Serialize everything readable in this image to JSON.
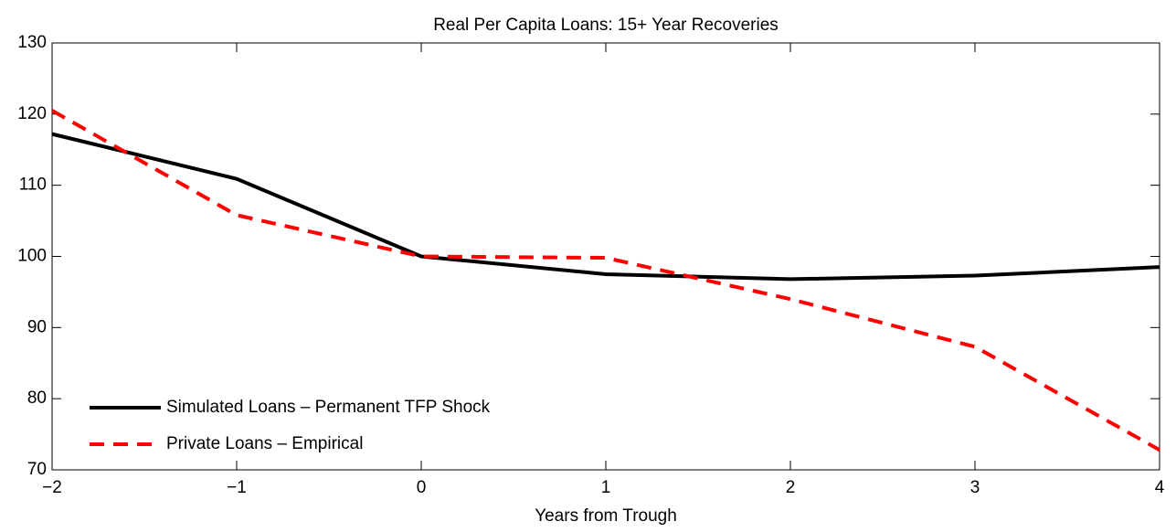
{
  "chart_data": {
    "type": "line",
    "title": "Real Per Capita Loans: 15+ Year Recoveries",
    "x_label": "Years from Trough",
    "x": [
      -2,
      -1,
      0,
      1,
      2,
      3,
      4
    ],
    "series": [
      {
        "name": "Simulated Loans – Permanent TFP Shock",
        "color": "#000000",
        "dash": "solid",
        "values": [
          117.2,
          110.9,
          100,
          97.5,
          96.8,
          97.3,
          98.5
        ]
      },
      {
        "name": "Private Loans – Empirical",
        "color": "#ff0000",
        "dash": "dashed",
        "values": [
          120.5,
          105.8,
          100,
          99.8,
          94,
          87.3,
          72.8
        ]
      }
    ],
    "xlim": [
      -2,
      4
    ],
    "xticks": [
      {
        "value": -2,
        "label": "−2"
      },
      {
        "value": -1,
        "label": "−1"
      },
      0,
      1,
      2,
      3,
      4
    ],
    "ylim": [
      70,
      130
    ],
    "yticks": [
      70,
      80,
      90,
      100,
      110,
      120,
      130
    ],
    "grid": false,
    "legend": "lower-left"
  }
}
